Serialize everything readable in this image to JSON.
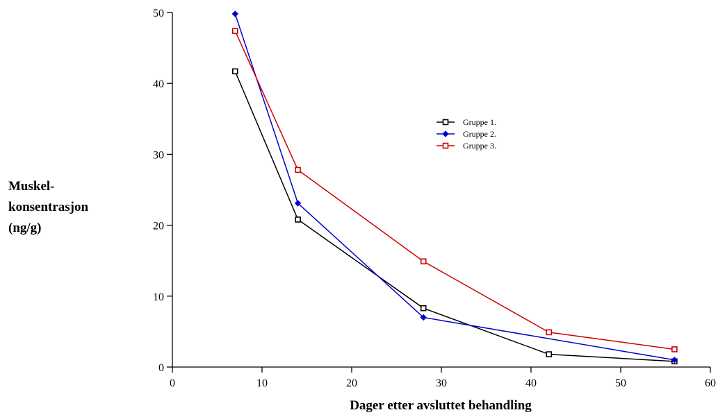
{
  "chart_data": {
    "type": "line",
    "title": "",
    "xlabel": "Dager etter avsluttet behandling",
    "ylabel_lines": [
      "Muskel-",
      "konsentrasjon",
      "(ng/g)"
    ],
    "xlim": [
      0,
      60
    ],
    "ylim": [
      0,
      50
    ],
    "xticks": [
      0,
      10,
      20,
      30,
      40,
      50,
      60
    ],
    "yticks": [
      0,
      10,
      20,
      30,
      40,
      50
    ],
    "grid": false,
    "legend_position": "center-right",
    "series": [
      {
        "name": "Gruppe 1.",
        "color": "#000000",
        "marker": "open-square",
        "points": [
          [
            7,
            41.7
          ],
          [
            14,
            20.8
          ],
          [
            28,
            8.3
          ],
          [
            42,
            1.8
          ],
          [
            56,
            0.8
          ]
        ]
      },
      {
        "name": "Gruppe 2.",
        "color": "#0000cc",
        "marker": "filled-diamond",
        "points": [
          [
            7,
            49.8
          ],
          [
            14,
            23.1
          ],
          [
            28,
            7.0
          ],
          [
            56,
            1.0
          ]
        ]
      },
      {
        "name": "Gruppe 3.",
        "color": "#cc0000",
        "marker": "open-square",
        "points": [
          [
            7,
            47.4
          ],
          [
            14,
            27.8
          ],
          [
            28,
            14.9
          ],
          [
            42,
            4.9
          ],
          [
            56,
            2.5
          ]
        ]
      }
    ]
  }
}
